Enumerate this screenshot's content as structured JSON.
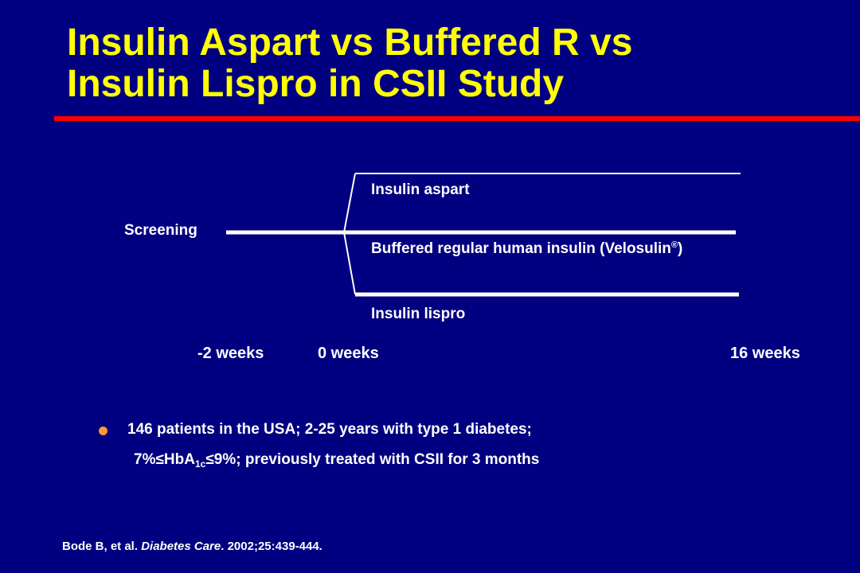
{
  "title": {
    "line1": "Insulin Aspart vs Buffered R vs",
    "line2": "Insulin Lispro in CSII Study"
  },
  "diagram": {
    "screening_label": "Screening",
    "arms": [
      {
        "label": "Insulin aspart"
      },
      {
        "label": "Buffered regular human insulin (Velosulin",
        "trademark": "®",
        "suffix": ")"
      },
      {
        "label": "Insulin lispro"
      }
    ],
    "timepoints": [
      "-2 weeks",
      "0 weeks",
      "16 weeks"
    ]
  },
  "bullet": {
    "line1": "146 patients in the USA; 2-25 years with type 1 diabetes;",
    "line2_pre": "7%",
    "le_symbol": "≤",
    "hba": "HbA",
    "hba_sub": "1c",
    "line2_mid": "9%; previously treated with CSII for 3 months"
  },
  "citation": {
    "authors": "Bode B, et al. ",
    "journal": "Diabetes Care",
    "details": ". 2002;25:439-444."
  },
  "colors": {
    "background": "#000080",
    "title": "#ffff00",
    "rule": "#ff0000",
    "bullet": "#ff9933",
    "text": "#ffffff"
  }
}
